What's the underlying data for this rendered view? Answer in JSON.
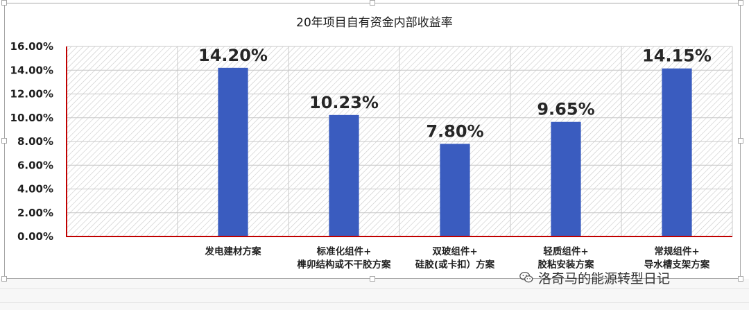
{
  "chart_data": {
    "type": "bar",
    "title": "20年项目自有资金内部收益率",
    "categories": [
      "",
      "发电建材方案",
      "标准化组件+\n榫卯结构或不干胶方案",
      "双玻组件+\n硅胶(或卡扣）方案",
      "轻质组件+\n胶粘安装方案",
      "常规组件+\n导水槽支架方案"
    ],
    "values": [
      null,
      14.2,
      10.23,
      7.8,
      9.65,
      14.15
    ],
    "data_labels": [
      "",
      "14.20%",
      "10.23%",
      "7.80%",
      "9.65%",
      "14.15%"
    ],
    "ylim": [
      0,
      16
    ],
    "y_ticks": [
      "0.00%",
      "2.00%",
      "4.00%",
      "6.00%",
      "8.00%",
      "10.00%",
      "12.00%",
      "14.00%",
      "16.00%"
    ],
    "grid": true,
    "colors": {
      "bar": "#3a5cbf",
      "axis": "#c00000",
      "grid": "#c8c8c8",
      "hatch": "#c9c9c9",
      "text": "#1f1f1f",
      "label": "#262626"
    }
  },
  "watermark": {
    "text": "洛奇马的能源转型日记",
    "icon": "wechat-icon"
  }
}
